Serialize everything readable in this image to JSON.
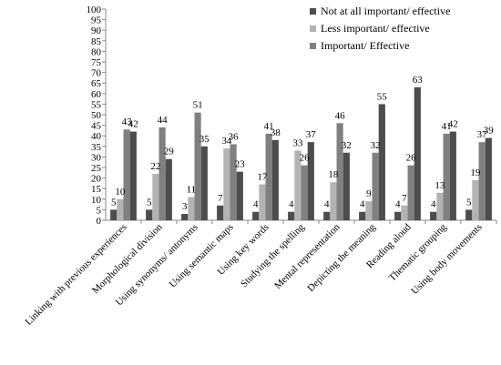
{
  "chart_data": {
    "type": "bar",
    "categories": [
      "Linking with previous experiences",
      "Morphological division",
      "Using synonyms/ antonyms",
      "Using semantic maps",
      "Using key words",
      "Studying the spelling",
      "Mental representation",
      "Depicting the meaning",
      "Reading aloud",
      "Thematic grouping",
      "Using body movements"
    ],
    "series": [
      {
        "name": "Not at all important/ effective",
        "color": "#4d4d4d",
        "values": [
          5,
          5,
          3,
          7,
          4,
          4,
          4,
          4,
          4,
          4,
          5
        ]
      },
      {
        "name": "Less important/ effective",
        "color": "#b3b3b3",
        "values": [
          10,
          22,
          11,
          34,
          17,
          33,
          18,
          9,
          7,
          13,
          19
        ]
      },
      {
        "name": "Important/ Effective",
        "color": "#808080",
        "values": [
          43,
          44,
          51,
          36,
          41,
          26,
          46,
          32,
          26,
          41,
          37
        ]
      },
      {
        "name": "",
        "color": "#4d4d4d",
        "values": [
          42,
          29,
          35,
          23,
          38,
          37,
          32,
          55,
          63,
          42,
          39
        ]
      }
    ],
    "ylim": [
      0,
      100
    ],
    "yticks": [
      0,
      5,
      10,
      15,
      20,
      25,
      30,
      35,
      40,
      45,
      50,
      55,
      60,
      65,
      70,
      75,
      80,
      85,
      90,
      95,
      100
    ],
    "legend_position": "top-right",
    "grid": false
  }
}
